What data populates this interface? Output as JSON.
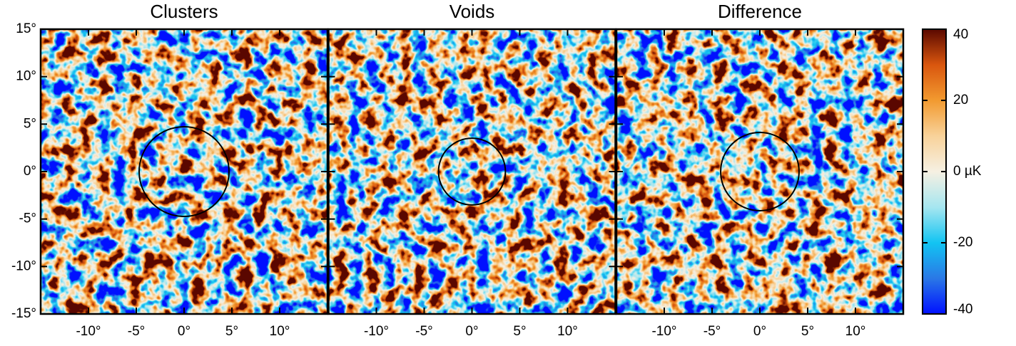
{
  "chart_data": {
    "type": "heatmap",
    "panels": [
      {
        "title": "Clusters",
        "circle": {
          "x": 0,
          "y": 0,
          "r": 4.7
        }
      },
      {
        "title": "Voids",
        "circle": {
          "x": 0,
          "y": 0,
          "r": 3.5
        }
      },
      {
        "title": "Difference",
        "circle": {
          "x": 0,
          "y": 0,
          "r": 4.1
        }
      }
    ],
    "xlim": [
      -15,
      15
    ],
    "ylim": [
      -15,
      15
    ],
    "xticks": [
      {
        "value": -10,
        "label": "-10°"
      },
      {
        "value": -5,
        "label": "-5°"
      },
      {
        "value": 0,
        "label": "0°"
      },
      {
        "value": 5,
        "label": "5°"
      },
      {
        "value": 10,
        "label": "10°"
      }
    ],
    "yticks": [
      {
        "value": 15,
        "label": "15°"
      },
      {
        "value": 10,
        "label": "10°"
      },
      {
        "value": 5,
        "label": "5°"
      },
      {
        "value": 0,
        "label": "0°"
      },
      {
        "value": -5,
        "label": "-5°"
      },
      {
        "value": -10,
        "label": "-10°"
      },
      {
        "value": -15,
        "label": "-15°"
      }
    ],
    "colorbar": {
      "lim": [
        -40,
        40
      ],
      "ticks": [
        40,
        20,
        {
          "value": 0,
          "label": "0 µK"
        },
        -20,
        -40
      ],
      "colormap": [
        "#0010ff",
        "#2a78e6",
        "#12c4f2",
        "#a6e6f0",
        "#f6f0e2",
        "#f8d29a",
        "#f29a30",
        "#d9560e",
        "#5a0800"
      ]
    }
  }
}
